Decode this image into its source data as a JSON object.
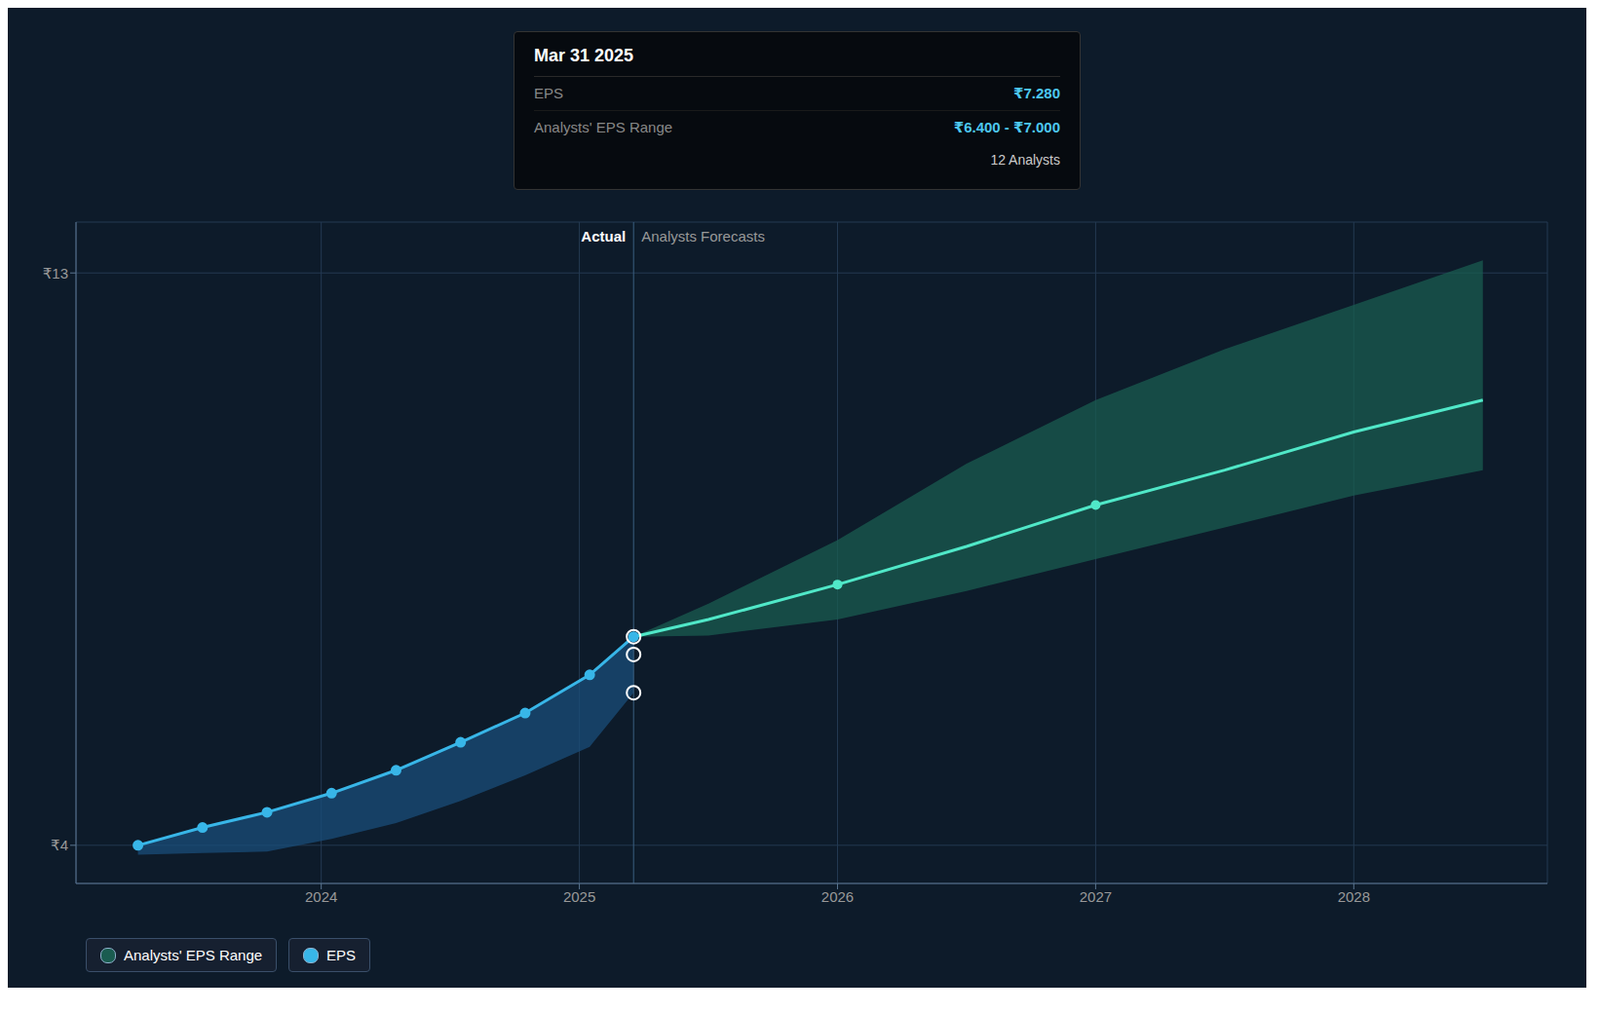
{
  "chart_data": {
    "type": "line",
    "xlim": [
      2023.05,
      2028.75
    ],
    "ylim": [
      3.4,
      13.8
    ],
    "xticks": [
      2024,
      2025,
      2026,
      2027,
      2028
    ],
    "yticks": [
      {
        "value": 4,
        "label": "₹4"
      },
      {
        "value": 13,
        "label": "₹13"
      }
    ],
    "grid": true,
    "legend": "lower left",
    "series": [
      {
        "type": "range",
        "color": "#1a4d7a",
        "x": [
          2023.29,
          2023.54,
          2023.79,
          2024.04,
          2024.29,
          2024.54,
          2024.79,
          2025.04,
          2025.21
        ],
        "low": [
          3.85,
          3.88,
          3.9,
          4.1,
          4.35,
          4.7,
          5.1,
          5.55,
          6.4
        ],
        "high": [
          4.0,
          4.28,
          4.52,
          4.82,
          5.18,
          5.62,
          6.08,
          6.68,
          7.28
        ]
      },
      {
        "name": "Analysts' EPS Range",
        "type": "range",
        "color": "#1a5c50",
        "x": [
          2025.21,
          2025.5,
          2026.0,
          2026.5,
          2027.0,
          2027.5,
          2028.0,
          2028.5
        ],
        "low": [
          7.28,
          7.3,
          7.55,
          8.0,
          8.5,
          9.0,
          9.5,
          9.9
        ],
        "high": [
          7.28,
          7.8,
          8.8,
          10.0,
          11.0,
          11.8,
          12.5,
          13.2
        ]
      },
      {
        "name": "EPS",
        "type": "line",
        "color": "#38b6e8",
        "marker": "circle",
        "x": [
          2023.29,
          2023.54,
          2023.79,
          2024.04,
          2024.29,
          2024.54,
          2024.79,
          2025.04,
          2025.21
        ],
        "values": [
          4.0,
          4.28,
          4.52,
          4.82,
          5.18,
          5.62,
          6.08,
          6.68,
          7.28
        ]
      },
      {
        "type": "line",
        "color": "#50e8c8",
        "x": [
          2025.21,
          2025.5,
          2026.0,
          2026.5,
          2027.0,
          2027.5,
          2028.0,
          2028.5
        ],
        "values": [
          7.28,
          7.55,
          8.1,
          8.7,
          9.35,
          9.9,
          10.5,
          11.0
        ]
      },
      {
        "type": "scatter",
        "color": "#ffffff",
        "marker": "circle_open",
        "x": [
          2025.21,
          2025.21,
          2025.21
        ],
        "values": [
          7.28,
          7.0,
          6.4
        ]
      },
      {
        "type": "scatter",
        "color": "#50e8c8",
        "marker": "circle",
        "x": [
          2026.0,
          2027.0
        ],
        "values": [
          8.1,
          9.35
        ]
      }
    ],
    "annotations": [
      {
        "type": "vline",
        "x": 2025.21,
        "color": "#3a6080",
        "label_left": "Actual",
        "label_right": "Analysts Forecasts"
      }
    ],
    "tooltip": {
      "title": "Mar 31 2025",
      "rows": [
        {
          "label": "EPS",
          "value": "₹7.280",
          "color": "#4dc8f0"
        },
        {
          "label": "Analysts' EPS Range",
          "value": "₹6.400 - ₹7.000",
          "color": "#4dc8f0"
        },
        {
          "value": "12 Analysts",
          "color": "#cccccc"
        }
      ]
    }
  }
}
